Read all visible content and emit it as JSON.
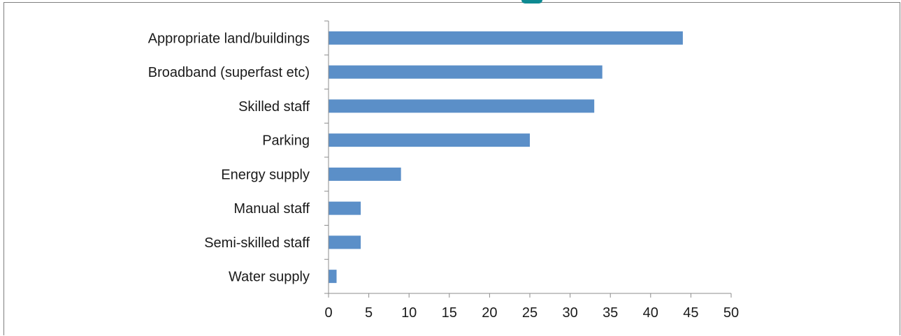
{
  "chart_data": {
    "type": "bar",
    "orientation": "horizontal",
    "categories": [
      "Appropriate land/buildings",
      "Broadband (superfast etc)",
      "Skilled staff",
      "Parking",
      "Energy supply",
      "Manual staff",
      "Semi-skilled staff",
      "Water supply"
    ],
    "values": [
      44,
      34,
      33,
      25,
      9,
      4,
      4,
      1
    ],
    "xlim": [
      0,
      50
    ],
    "xticks": [
      "0",
      "5",
      "10",
      "15",
      "20",
      "25",
      "30",
      "35",
      "40",
      "45",
      "50"
    ],
    "grid": false,
    "legend": "none",
    "bar_color": "#5b8fc8"
  }
}
